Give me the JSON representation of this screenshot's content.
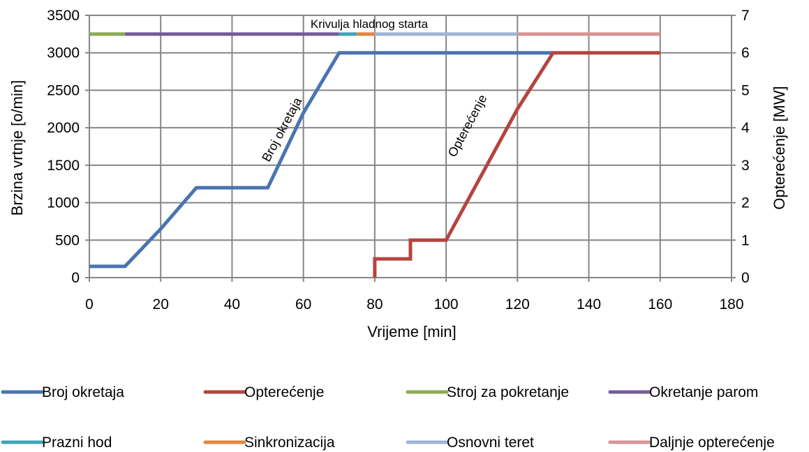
{
  "chart_data": {
    "type": "line",
    "title": "Krivulja hladnog starta",
    "xlabel": "Vrijeme [min]",
    "ylabel": "Brzina vrtnje [o/min]",
    "y2label": "Opterećenje [MW]",
    "xlim": [
      0,
      180
    ],
    "ylim": [
      0,
      3500
    ],
    "y2lim": [
      0,
      7
    ],
    "x_ticks": [
      "0",
      "20",
      "40",
      "60",
      "80",
      "100",
      "120",
      "140",
      "160",
      "180"
    ],
    "y_ticks": [
      "0",
      "500",
      "1000",
      "1500",
      "2000",
      "2500",
      "3000",
      "3500"
    ],
    "y2_ticks": [
      "0",
      "1",
      "2",
      "3",
      "4",
      "5",
      "6",
      "7"
    ],
    "grid": true,
    "legend_position": "bottom",
    "series": [
      {
        "name": "Broj okretaja",
        "axis": "left",
        "color": "#4a74b0",
        "points": [
          [
            0,
            150
          ],
          [
            10,
            150
          ],
          [
            20,
            650
          ],
          [
            30,
            1200
          ],
          [
            50,
            1200
          ],
          [
            60,
            2200
          ],
          [
            70,
            3000
          ],
          [
            130,
            3000
          ]
        ]
      },
      {
        "name": "Opterećenje",
        "axis": "right",
        "color": "#b5443f",
        "points": [
          [
            80,
            0
          ],
          [
            80,
            0.5
          ],
          [
            90,
            0.5
          ],
          [
            90,
            1.0
          ],
          [
            100,
            1.0
          ],
          [
            120,
            4.5
          ],
          [
            130,
            6.0
          ],
          [
            160,
            6.0
          ]
        ]
      },
      {
        "name": "Stroj za pokretanje",
        "axis": "left",
        "color": "#8bab50",
        "points": [
          [
            0,
            3250
          ],
          [
            10,
            3250
          ]
        ]
      },
      {
        "name": "Okretanje parom",
        "axis": "left",
        "color": "#735c98",
        "points": [
          [
            10,
            3250
          ],
          [
            70,
            3250
          ]
        ]
      },
      {
        "name": "Prazni hod",
        "axis": "left",
        "color": "#3ea4b8",
        "points": [
          [
            70,
            3250
          ],
          [
            75,
            3250
          ]
        ]
      },
      {
        "name": "Sinkronizacija",
        "axis": "left",
        "color": "#e5863c",
        "points": [
          [
            75,
            3250
          ],
          [
            80,
            3250
          ]
        ]
      },
      {
        "name": "Osnovni teret",
        "axis": "left",
        "color": "#9db4db",
        "points": [
          [
            80,
            3250
          ],
          [
            120,
            3250
          ]
        ]
      },
      {
        "name": "Daljnje opterećenje",
        "axis": "left",
        "color": "#d99493",
        "points": [
          [
            120,
            3250
          ],
          [
            160,
            3250
          ]
        ]
      }
    ],
    "annotations": [
      {
        "text": "Broj okretaja",
        "x": 55,
        "y": 1950,
        "rotation": -62
      },
      {
        "text": "Opterećenje",
        "x": 107,
        "y": 2000,
        "rotation": -62
      }
    ]
  }
}
